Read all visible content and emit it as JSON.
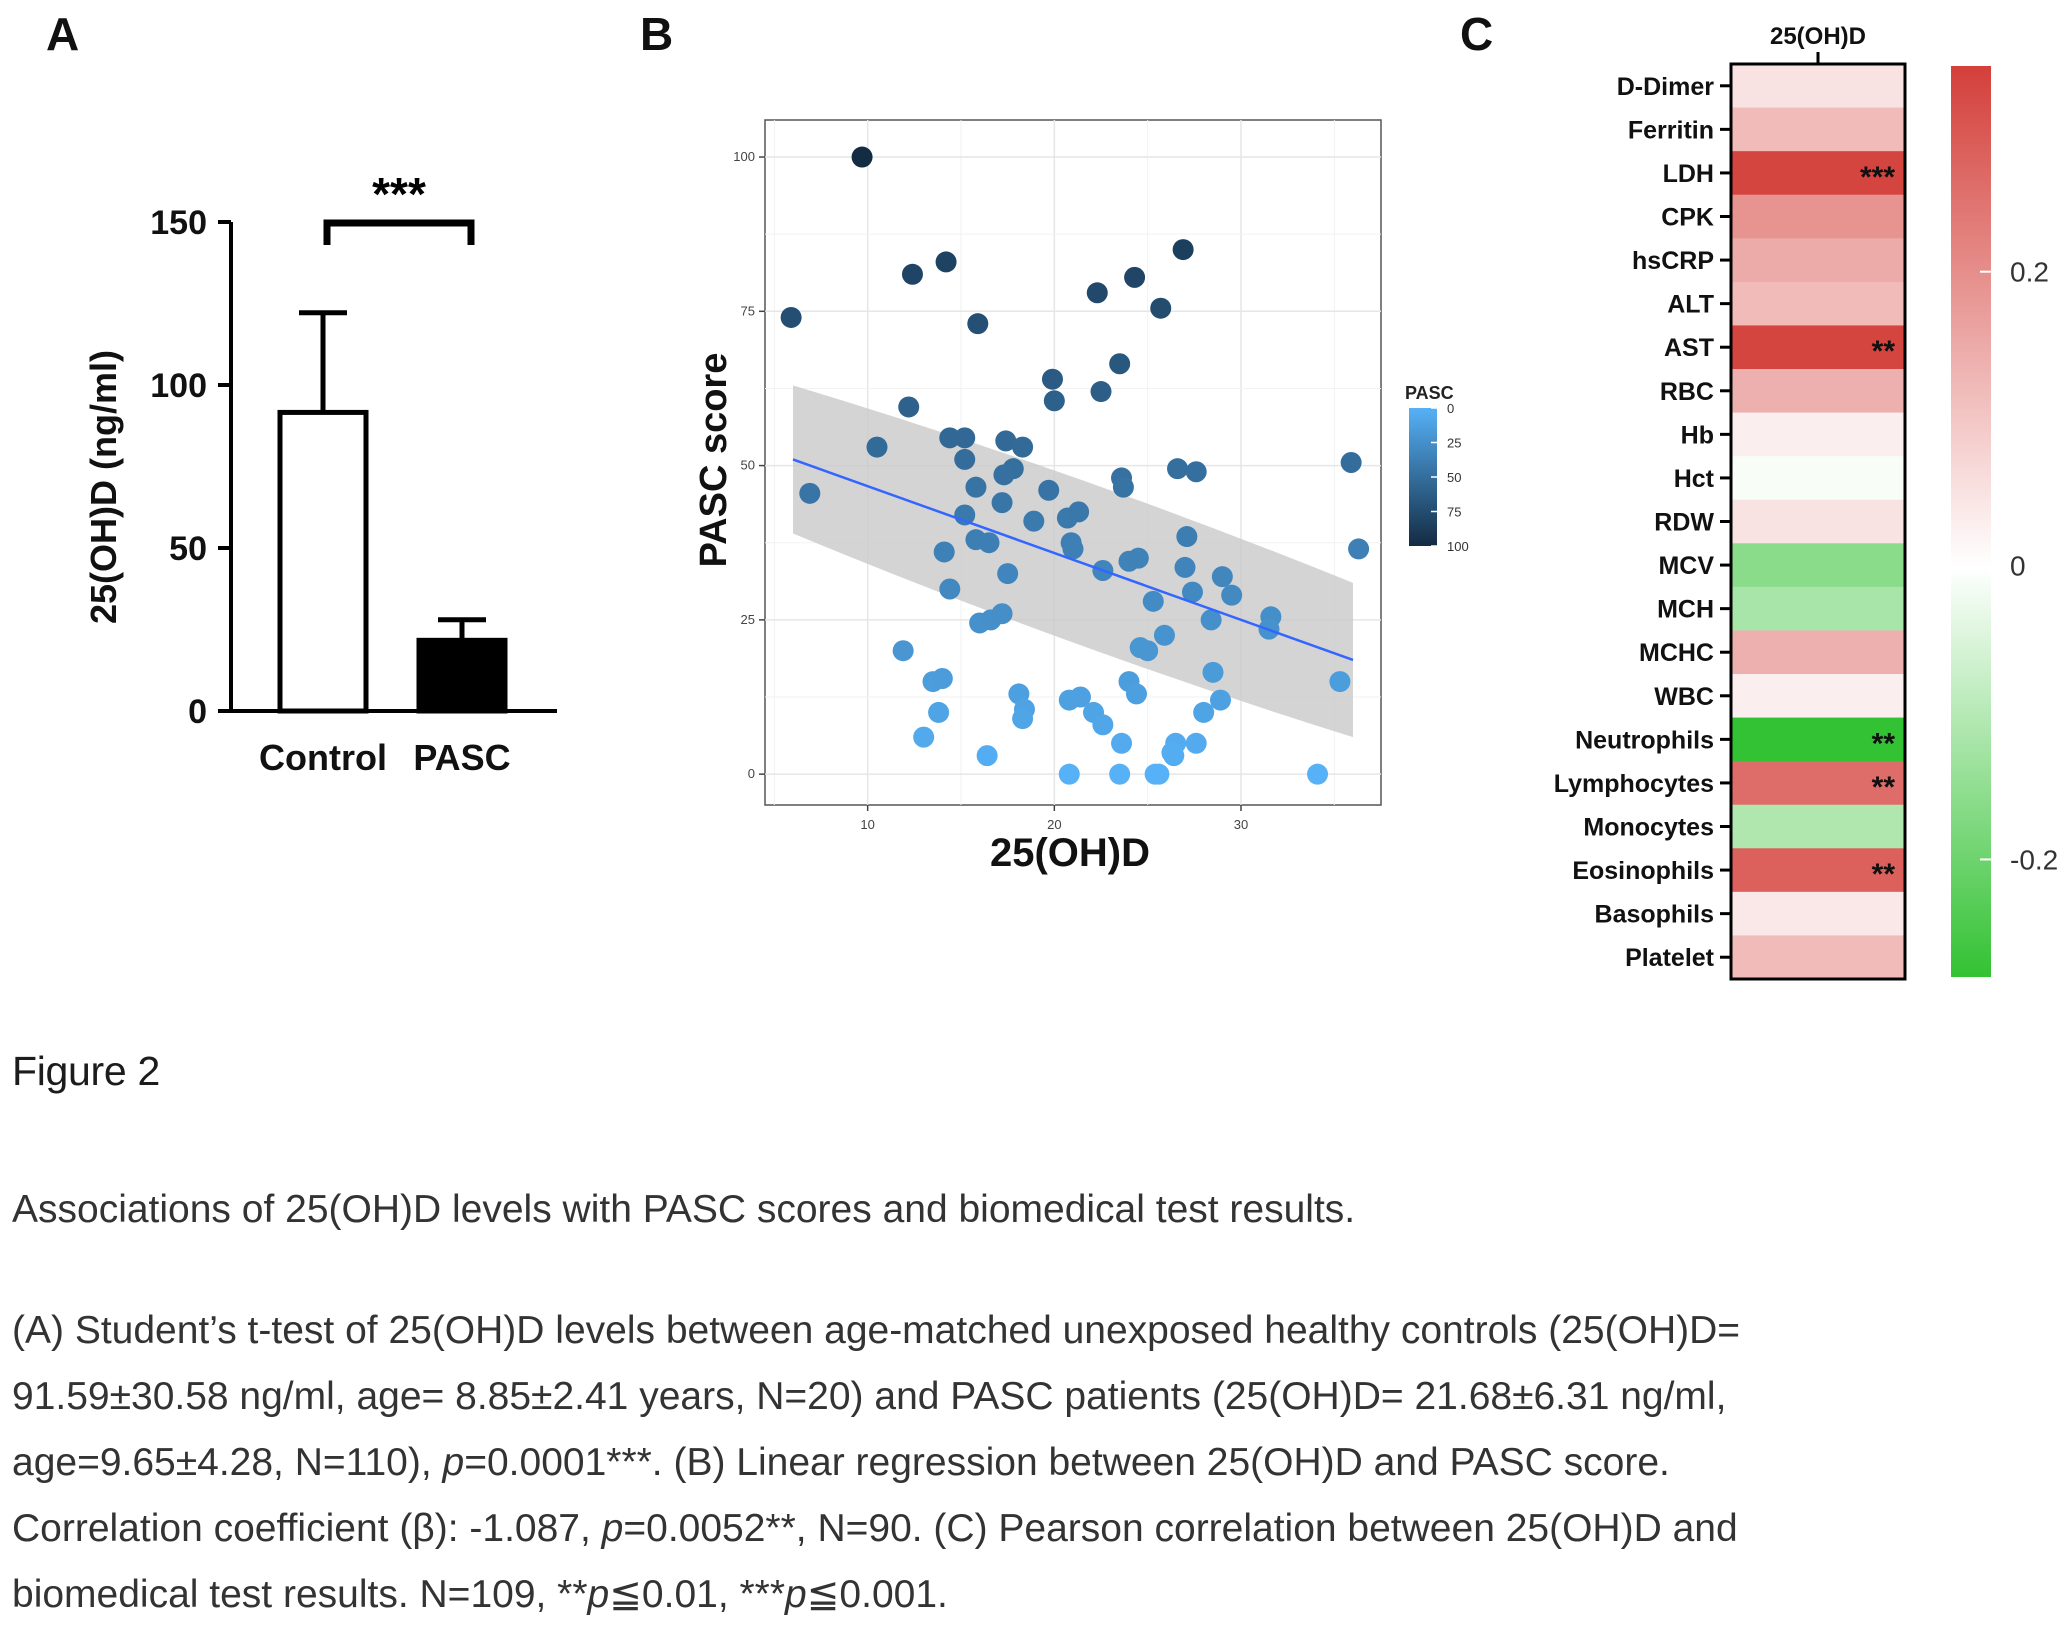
{
  "panels": {
    "a_label": "A",
    "b_label": "B",
    "c_label": "C"
  },
  "chart_data": [
    {
      "type": "bar",
      "panel": "A",
      "categories": [
        "Control",
        "PASC"
      ],
      "values": [
        91.59,
        21.68
      ],
      "error_bars": [
        30.58,
        6.31
      ],
      "bar_colors": [
        "#ffffff",
        "#000000"
      ],
      "ylabel": "25(OH)D (ng/ml)",
      "ylim": [
        0,
        150
      ],
      "yticks": [
        "0",
        "50",
        "100",
        "150"
      ],
      "significance": "***"
    },
    {
      "type": "scatter",
      "panel": "B",
      "xlabel": "25(OH)D",
      "ylabel": "PASC score",
      "xlim": [
        4.5,
        37.5
      ],
      "ylim": [
        -5,
        106
      ],
      "xticks": [
        "10",
        "20",
        "30"
      ],
      "yticks": [
        "0",
        "25",
        "50",
        "75",
        "100"
      ],
      "grid": true,
      "legend_title": "PASC",
      "legend_ticks": [
        "0",
        "25",
        "50",
        "75",
        "100"
      ],
      "color_scale": [
        "#56B1F7",
        "#132B43"
      ],
      "regression": {
        "x": [
          6.0,
          36.0
        ],
        "y": [
          51.0,
          18.5
        ],
        "ci_low": [
          39.0,
          6.0
        ],
        "ci_high": [
          63.0,
          31.0
        ]
      },
      "points": [
        [
          9.7,
          100
        ],
        [
          5.9,
          74
        ],
        [
          6.9,
          45.5
        ],
        [
          10.5,
          53
        ],
        [
          12.2,
          59.5
        ],
        [
          12.4,
          81
        ],
        [
          14.2,
          83
        ],
        [
          15.9,
          73
        ],
        [
          19.9,
          64
        ],
        [
          20.0,
          60.5
        ],
        [
          22.3,
          78
        ],
        [
          22.5,
          62
        ],
        [
          23.5,
          66.5
        ],
        [
          24.3,
          80.5
        ],
        [
          25.7,
          75.5
        ],
        [
          26.9,
          85
        ],
        [
          14.4,
          54.5
        ],
        [
          15.2,
          54.5
        ],
        [
          15.2,
          51
        ],
        [
          17.4,
          54
        ],
        [
          18.3,
          53
        ],
        [
          17.8,
          49.5
        ],
        [
          17.3,
          48.5
        ],
        [
          15.8,
          46.5
        ],
        [
          17.2,
          44
        ],
        [
          19.7,
          46
        ],
        [
          20.7,
          41.5
        ],
        [
          21.3,
          42.5
        ],
        [
          18.9,
          41
        ],
        [
          15.2,
          42
        ],
        [
          15.8,
          38
        ],
        [
          16.5,
          37.5
        ],
        [
          20.9,
          37.5
        ],
        [
          21.0,
          36.5
        ],
        [
          14.1,
          36
        ],
        [
          17.5,
          32.5
        ],
        [
          14.4,
          30
        ],
        [
          23.6,
          48
        ],
        [
          23.7,
          46.5
        ],
        [
          26.6,
          49.5
        ],
        [
          27.6,
          49
        ],
        [
          35.9,
          50.5
        ],
        [
          36.3,
          36.5
        ],
        [
          27.1,
          38.5
        ],
        [
          24.0,
          34.5
        ],
        [
          24.5,
          35
        ],
        [
          22.6,
          33
        ],
        [
          27.0,
          33.5
        ],
        [
          27.4,
          29.5
        ],
        [
          29.0,
          32
        ],
        [
          29.5,
          29
        ],
        [
          25.3,
          28
        ],
        [
          25.9,
          22.5
        ],
        [
          24.6,
          20.5
        ],
        [
          25.0,
          20
        ],
        [
          28.4,
          25
        ],
        [
          31.6,
          25.5
        ],
        [
          31.5,
          23.5
        ],
        [
          16.0,
          24.5
        ],
        [
          16.6,
          25
        ],
        [
          17.2,
          26
        ],
        [
          11.9,
          20
        ],
        [
          13.5,
          15
        ],
        [
          14.0,
          15.5
        ],
        [
          13.8,
          10
        ],
        [
          13.0,
          6
        ],
        [
          18.1,
          13
        ],
        [
          18.4,
          10.5
        ],
        [
          18.3,
          9
        ],
        [
          20.8,
          12
        ],
        [
          21.4,
          12.5
        ],
        [
          22.1,
          10
        ],
        [
          22.6,
          8
        ],
        [
          23.6,
          5
        ],
        [
          24.0,
          15
        ],
        [
          24.4,
          13
        ],
        [
          26.5,
          5
        ],
        [
          26.4,
          3
        ],
        [
          27.6,
          5
        ],
        [
          28.0,
          10
        ],
        [
          28.5,
          16.5
        ],
        [
          28.9,
          12
        ],
        [
          35.3,
          15
        ],
        [
          16.4,
          3
        ],
        [
          20.8,
          0
        ],
        [
          23.5,
          0
        ],
        [
          25.4,
          0
        ],
        [
          25.6,
          0
        ],
        [
          34.1,
          0
        ],
        [
          26.3,
          3.5
        ]
      ]
    },
    {
      "type": "heatmap",
      "panel": "C",
      "column": "25(OH)D",
      "rows": [
        "D-Dimer",
        "Ferritin",
        "LDH",
        "CPK",
        "hsCRP",
        "ALT",
        "AST",
        "RBC",
        "Hb",
        "Hct",
        "RDW",
        "MCV",
        "MCH",
        "MCHC",
        "WBC",
        "Neutrophils",
        "Lymphocytes",
        "Monocytes",
        "Eosinophils",
        "Basophils",
        "Platelet"
      ],
      "values": [
        0.05,
        0.12,
        0.33,
        0.19,
        0.15,
        0.12,
        0.33,
        0.14,
        0.03,
        -0.01,
        0.05,
        -0.16,
        -0.12,
        0.14,
        0.03,
        -0.28,
        0.26,
        -0.11,
        0.28,
        0.04,
        0.12
      ],
      "annotations": [
        "",
        "",
        "***",
        "",
        "",
        "",
        "**",
        "",
        "",
        "",
        "",
        "",
        "",
        "",
        "",
        "**",
        "**",
        "",
        "**",
        "",
        ""
      ],
      "scale_range": [
        -0.28,
        0.34
      ],
      "scale_ticks": [
        "0.2",
        "0",
        "-0.2"
      ],
      "scale_tick_values": [
        0.2,
        0,
        -0.2
      ]
    }
  ],
  "caption": {
    "title": "Figure 2",
    "subtitle": "Associations of 25(OH)D levels with PASC scores and biomedical test results.",
    "line1": "(A) Student’s t-test of 25(OH)D levels between age-matched unexposed healthy controls (25(OH)D=",
    "line2": "91.59±30.58 ng/ml, age= 8.85±2.41 years, N=20) and PASC patients (25(OH)D= 21.68±6.31 ng/ml,",
    "line3_a": "age=9.65±4.28, N=110), ",
    "p_symbol": "p",
    "line3_b": "=0.0001***. (B) Linear regression between 25(OH)D and PASC score.",
    "line4_a": "Correlation coefficient (β): -1.087, ",
    "line4_b": "=0.0052**, N=90. (C) Pearson correlation between 25(OH)D and",
    "line5_a": "biomedical test results. N=109, **",
    "line5_b": "≦0.01, ***",
    "line5_c": "≦0.001."
  }
}
